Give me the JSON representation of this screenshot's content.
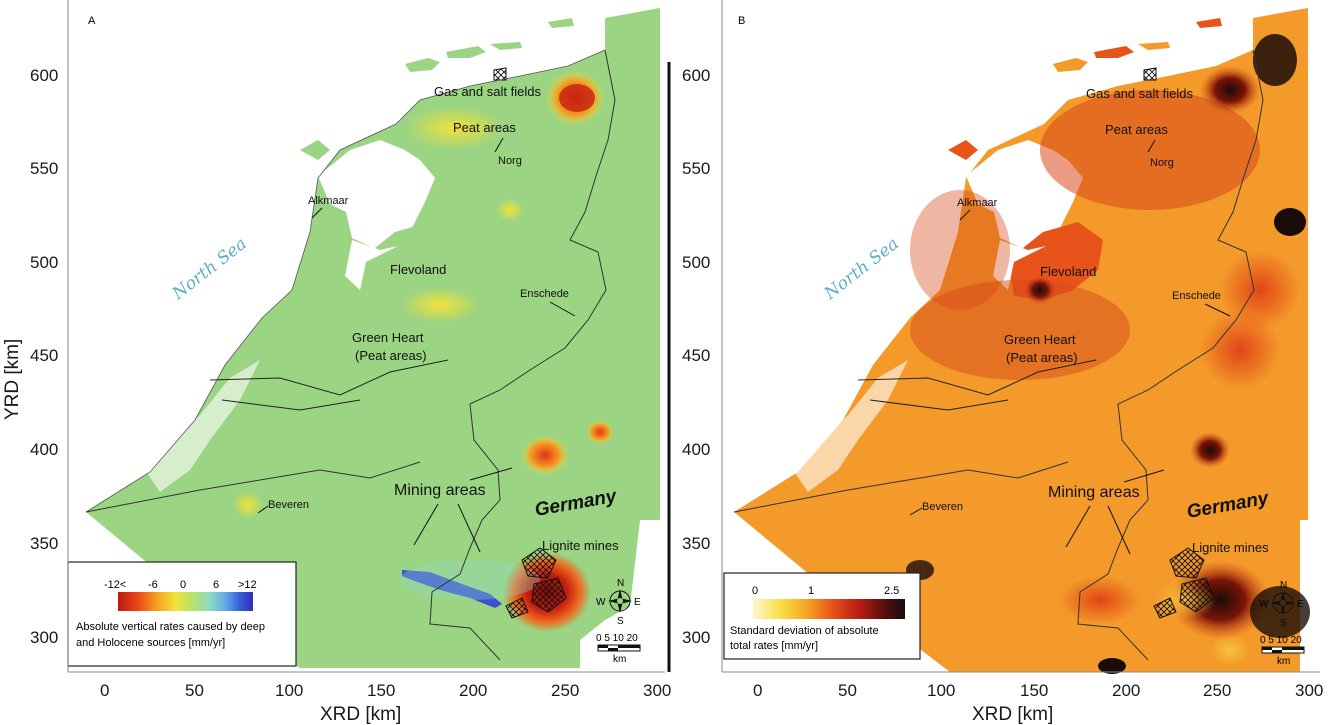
{
  "panels": [
    {
      "id": "A",
      "letter": "A",
      "axes": {
        "xlabel": "XRD [km]",
        "ylabel": "YRD [km]",
        "x_ticks": [
          "0",
          "50",
          "100",
          "150",
          "200",
          "250",
          "300"
        ],
        "y_ticks": [
          "300",
          "350",
          "400",
          "450",
          "500",
          "550",
          "600"
        ]
      },
      "labels": {
        "gas_salt": "Gas and salt fields",
        "peat": "Peat areas",
        "norg": "Norg",
        "alkmaar": "Alkmaar",
        "flevoland": "Flevoland",
        "enschede": "Enschede",
        "green_heart_1": "Green Heart",
        "green_heart_2": "(Peat areas)",
        "mining": "Mining areas",
        "germany": "Germany",
        "lignite": "Lignite mines",
        "beveren": "Beveren",
        "north_sea": "North Sea"
      },
      "legend": {
        "ticks": [
          "-12<",
          "-6",
          "0",
          "6",
          ">12"
        ],
        "text_line1": "Absolute vertical rates  caused by deep",
        "text_line2": "and Holocene sources [mm/yr]",
        "colors": [
          "#b81b10",
          "#e8431a",
          "#f59a21",
          "#f3e23a",
          "#b6e36a",
          "#8fd9c5",
          "#5fa6e8",
          "#3b5fd8",
          "#2d2fb8"
        ]
      },
      "scale": {
        "ticks": "0 5 10   20",
        "unit": "km"
      },
      "compass": {
        "n": "N",
        "s": "S",
        "e": "E",
        "w": "W"
      },
      "base_color": "#9bd482"
    },
    {
      "id": "B",
      "letter": "B",
      "axes": {
        "xlabel": "XRD [km]",
        "x_ticks": [
          "0",
          "50",
          "100",
          "150",
          "200",
          "250",
          "300"
        ],
        "y_ticks": [
          "300",
          "350",
          "400",
          "450",
          "500",
          "550",
          "600"
        ]
      },
      "labels": {
        "gas_salt": "Gas and salt fields",
        "peat": "Peat areas",
        "norg": "Norg",
        "alkmaar": "Alkmaar",
        "flevoland": "Flevoland",
        "enschede": "Enschede",
        "green_heart_1": "Green Heart",
        "green_heart_2": "(Peat areas)",
        "mining": "Mining areas",
        "germany": "Germany",
        "lignite": "Lignite mines",
        "beveren": "Beveren",
        "north_sea": "North Sea"
      },
      "legend": {
        "ticks": [
          "0",
          "1",
          "2.5"
        ],
        "text_line1": "Standard deviation of absolute",
        "text_line2": "total rates [mm/yr]",
        "colors": [
          "#fdf6c8",
          "#f8e04a",
          "#f4a321",
          "#e8521b",
          "#b61d12",
          "#5a0e0a",
          "#141010"
        ]
      },
      "scale": {
        "ticks": "0 5 10   20",
        "unit": "km"
      },
      "compass": {
        "n": "N",
        "s": "S",
        "e": "E",
        "w": "W"
      },
      "base_color": "#f39a2a"
    }
  ]
}
